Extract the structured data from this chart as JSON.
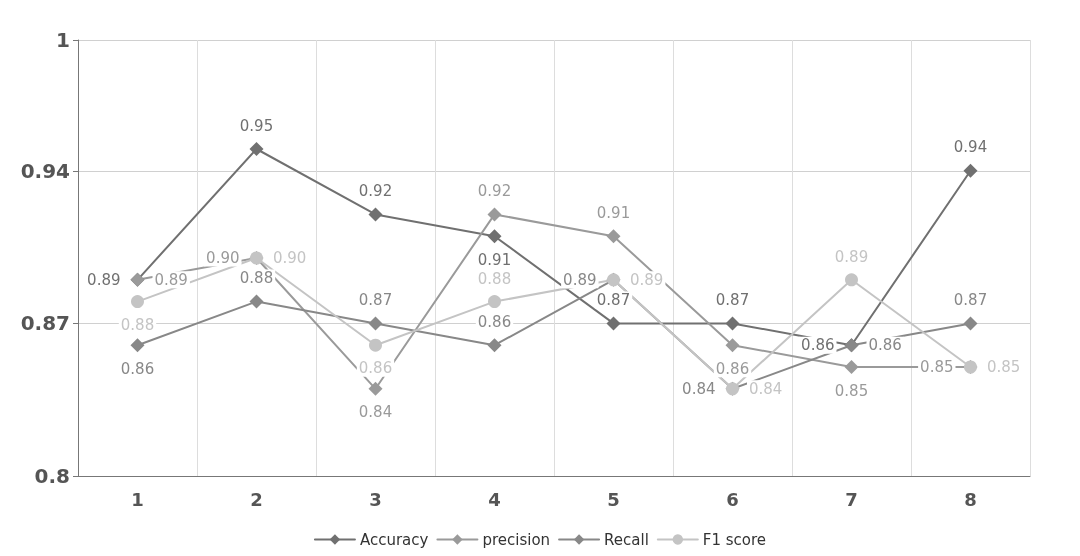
{
  "chart_data": {
    "type": "line",
    "categories": [
      "1",
      "2",
      "3",
      "4",
      "5",
      "6",
      "7",
      "8"
    ],
    "series": [
      {
        "name": "Accuracy",
        "color": "#707070",
        "marker": "diamond",
        "values": [
          0.89,
          0.95,
          0.92,
          0.91,
          0.87,
          0.87,
          0.86,
          0.94
        ],
        "value_labels": [
          "0.89",
          "0.95",
          "0.92",
          "0.91",
          "0.87",
          "0.87",
          "0.86",
          "0.94"
        ]
      },
      {
        "name": "precision",
        "color": "#9a9a9a",
        "marker": "diamond",
        "values": [
          0.89,
          0.9,
          0.84,
          0.92,
          0.91,
          0.86,
          0.85,
          0.85
        ],
        "value_labels": [
          "0.89",
          "0.90",
          "0.84",
          "0.92",
          "0.91",
          "0.86",
          "0.85",
          "0.85"
        ]
      },
      {
        "name": "Recall",
        "color": "#888888",
        "marker": "diamond",
        "values": [
          0.86,
          0.88,
          0.87,
          0.86,
          0.89,
          0.84,
          0.86,
          0.87
        ],
        "value_labels": [
          "0.86",
          "0.88",
          "0.87",
          "0.86",
          "0.89",
          "0.84",
          "0.86",
          "0.87"
        ]
      },
      {
        "name": "F1 score",
        "color": "#c4c4c4",
        "marker": "circle",
        "values": [
          0.88,
          0.9,
          0.86,
          0.88,
          0.89,
          0.84,
          0.89,
          0.85
        ],
        "value_labels": [
          "0.88",
          "0.90",
          "0.86",
          "0.88",
          "0.89",
          "0.84",
          "0.89",
          "0.85"
        ]
      }
    ],
    "ylim": [
      0.8,
      1
    ],
    "yticks": [
      0.8,
      0.87,
      0.94,
      1
    ],
    "grid": true,
    "legend": "bottom"
  }
}
